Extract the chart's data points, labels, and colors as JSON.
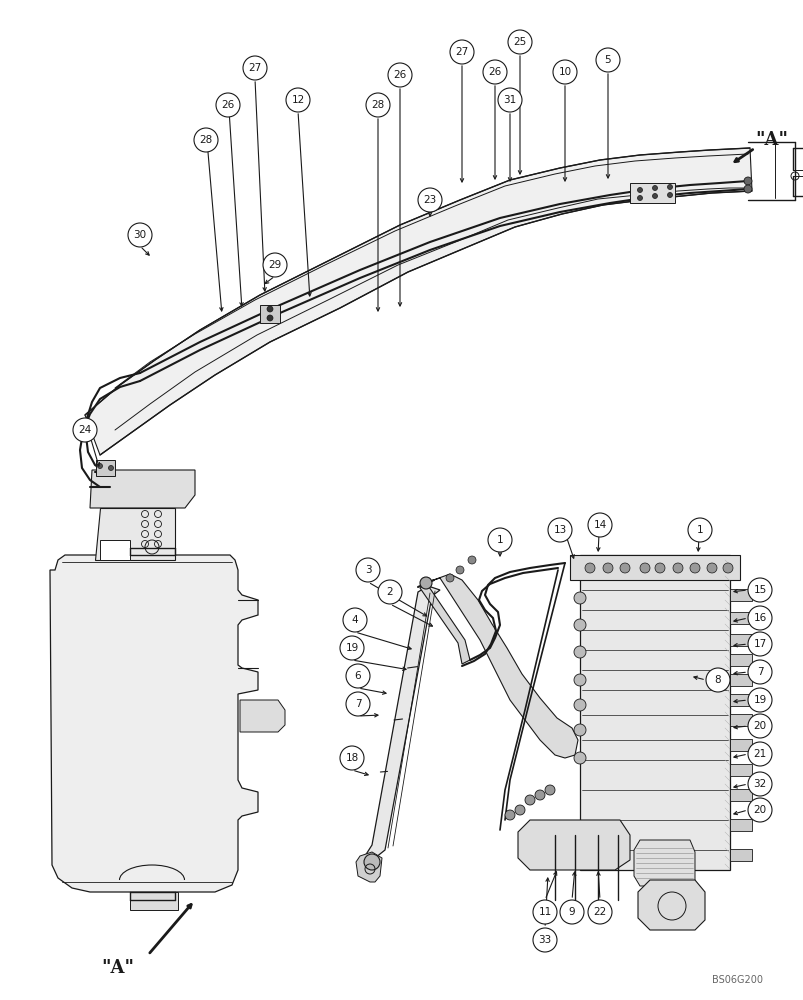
{
  "bg_color": "#ffffff",
  "line_color": "#1a1a1a",
  "watermark": "BS06G200",
  "fig_width": 8.04,
  "fig_height": 10.0,
  "dpi": 100
}
